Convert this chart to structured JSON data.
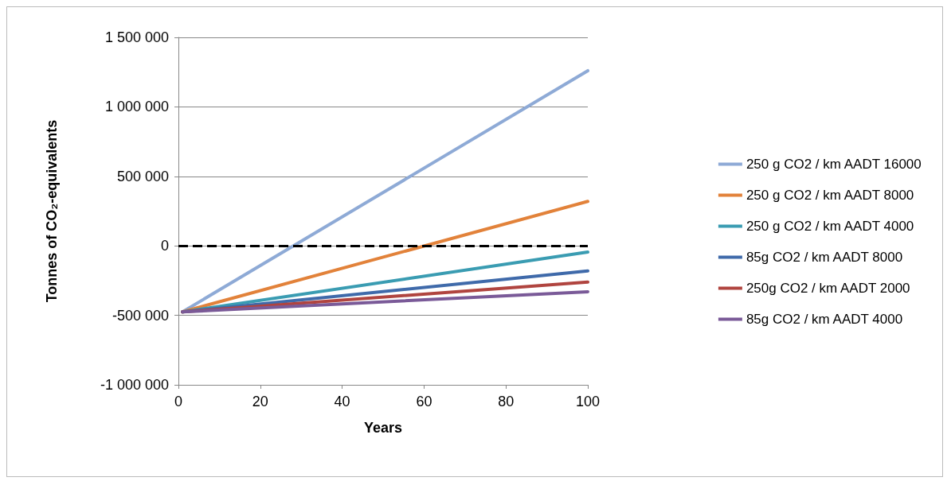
{
  "chart_data": {
    "type": "line",
    "xlabel": "Years",
    "ylabel": "Tonnes of CO₂-equivalents",
    "x": [
      1,
      100
    ],
    "series": [
      {
        "name": "250 g CO2 / km AADT 16000",
        "color": "#8eaad6",
        "values": [
          -475000,
          1260000
        ]
      },
      {
        "name": "250 g CO2 / km AADT 8000",
        "color": "#e2823a",
        "values": [
          -475000,
          320000
        ]
      },
      {
        "name": "250 g CO2 / km AADT 4000",
        "color": "#3a9cb2",
        "values": [
          -475000,
          -45000
        ]
      },
      {
        "name": "85g CO2 / km AADT 8000",
        "color": "#3f6aaa",
        "values": [
          -475000,
          -180000
        ]
      },
      {
        "name": "250g CO2 / km AADT 2000",
        "color": "#b0443f",
        "values": [
          -475000,
          -260000
        ]
      },
      {
        "name": "85g CO2 / km AADT 4000",
        "color": "#7a5a98",
        "values": [
          -475000,
          -330000
        ]
      }
    ],
    "xlim": [
      0,
      100
    ],
    "xticks": [
      0,
      20,
      40,
      60,
      80,
      100
    ],
    "ylim": [
      -1000000,
      1500000
    ],
    "yticks": [
      {
        "value": -1000000,
        "label": "-1 000 000"
      },
      {
        "value": -500000,
        "label": "-500 000"
      },
      0,
      {
        "value": 500000,
        "label": "500 000"
      },
      {
        "value": 1000000,
        "label": "1 000 000"
      },
      {
        "value": 1500000,
        "label": "1 500 000"
      }
    ],
    "ref_lines": [
      {
        "axis": "y",
        "value": 0,
        "color": "#000000",
        "line_style": "dashed"
      }
    ],
    "grid": "y",
    "legend": "right",
    "marker": "none",
    "line_style": "solid"
  }
}
